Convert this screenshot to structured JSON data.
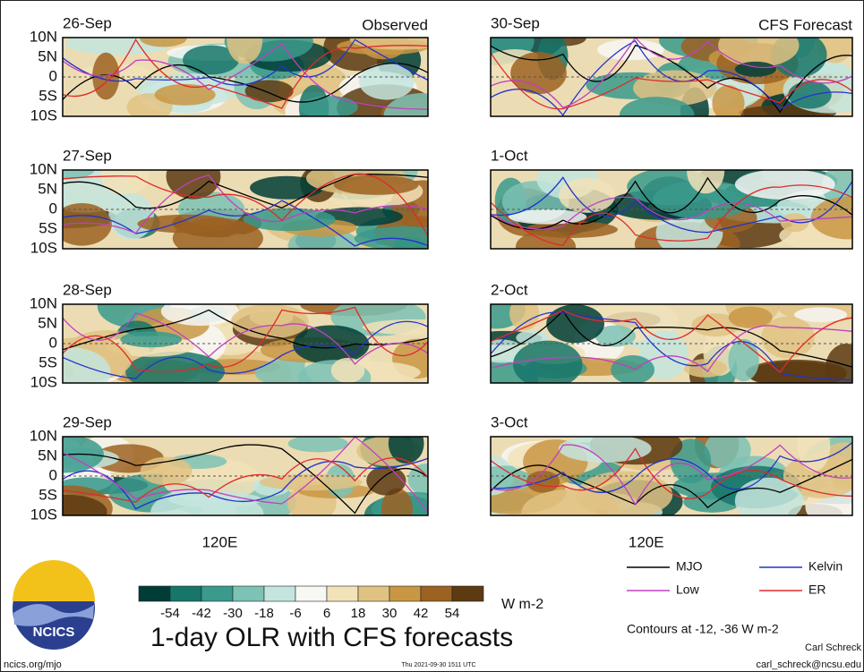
{
  "panels": [
    {
      "date": "26-Sep",
      "label": "Observed"
    },
    {
      "date": "27-Sep"
    },
    {
      "date": "28-Sep"
    },
    {
      "date": "29-Sep"
    },
    {
      "date": "30-Sep",
      "label": "CFS Forecast"
    },
    {
      "date": "1-Oct"
    },
    {
      "date": "2-Oct"
    },
    {
      "date": "3-Oct"
    }
  ],
  "lat_labels": [
    "10N",
    "5N",
    "0",
    "5S",
    "10S"
  ],
  "lon_label": "120E",
  "colorbar": {
    "colors": [
      "#003d36",
      "#17766a",
      "#3a9a8c",
      "#7cc2b5",
      "#c4e5de",
      "#f7f7f4",
      "#f2e2b8",
      "#e0c283",
      "#c99744",
      "#9c6222",
      "#5c3a12"
    ],
    "ticks": [
      -54,
      -42,
      -30,
      -18,
      -6,
      6,
      18,
      30,
      42,
      54
    ],
    "units": "W m-2"
  },
  "legend": [
    {
      "name": "MJO",
      "color": "#000000"
    },
    {
      "name": "Kelvin",
      "color": "#2233cc"
    },
    {
      "name": "Low",
      "color": "#c040c0"
    },
    {
      "name": "ER",
      "color": "#e02a2a"
    }
  ],
  "contours_note": "Contours at -12, -36 W m-2",
  "title": "1-day OLR with CFS forecasts",
  "logo": "NCICS",
  "url": "ncics.org/mjo",
  "timestamp": "Thu 2021-09-30 1511 UTC",
  "author": "Carl Schreck",
  "email": "carl_schreck@ncsu.edu"
}
